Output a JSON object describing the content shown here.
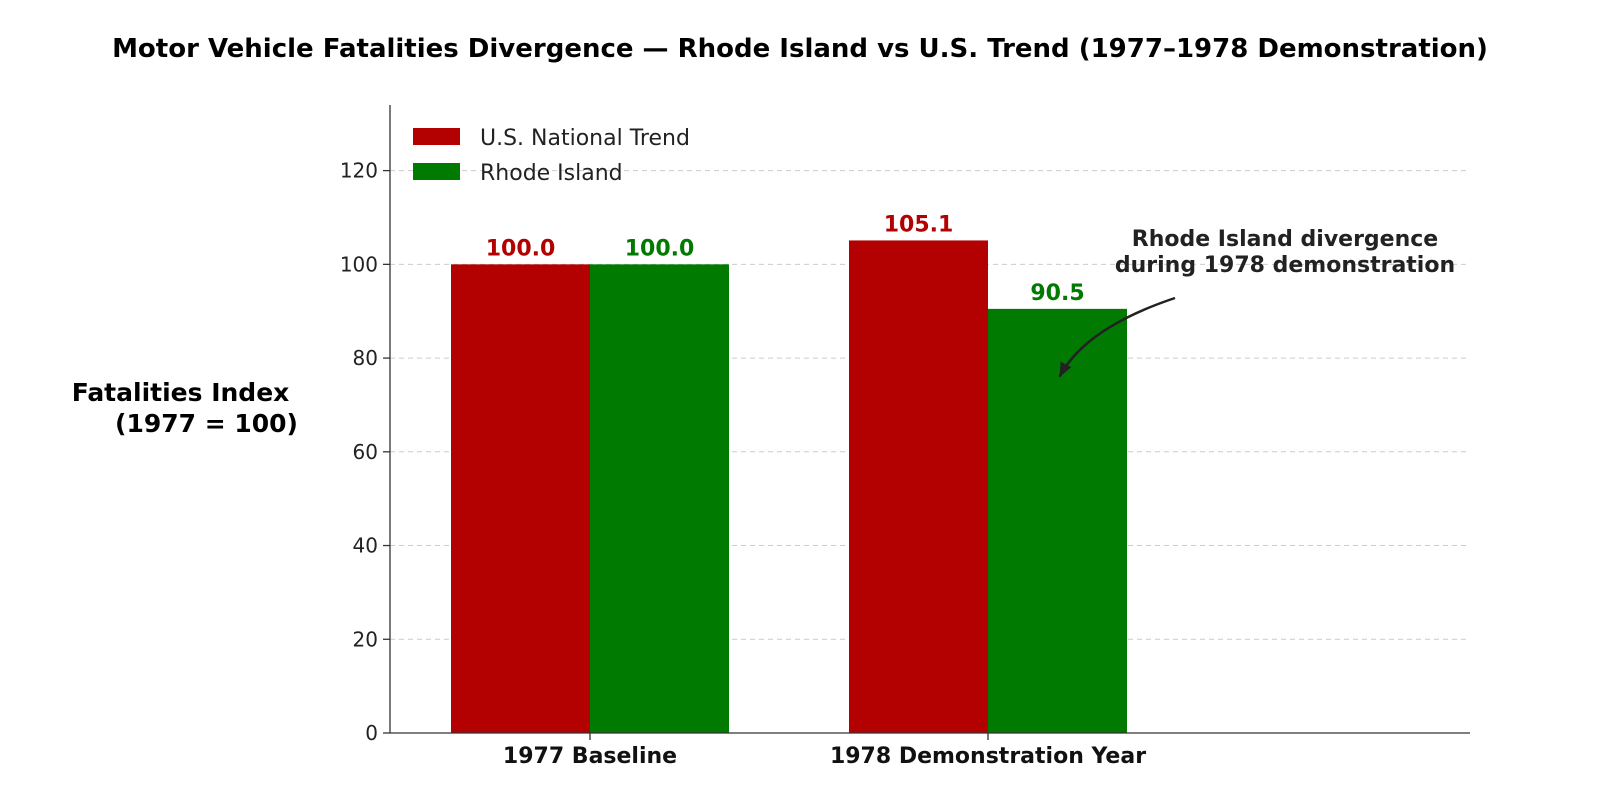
{
  "chart_data": {
    "type": "bar",
    "title": "Motor Vehicle Fatalities Divergence — Rhode Island vs U.S. Trend (1977–1978 Demonstration)",
    "ylabel_lines": [
      "Fatalities Index",
      "(1977 = 100)"
    ],
    "xlabel": "",
    "categories": [
      "1977 Baseline",
      "1978 Demonstration Year"
    ],
    "series": [
      {
        "name": "U.S. National Trend",
        "color": "#b30000",
        "values": [
          100.0,
          105.1
        ],
        "labels": [
          "100.0",
          "105.1"
        ]
      },
      {
        "name": "Rhode Island",
        "color": "#007a00",
        "values": [
          100.0,
          90.5
        ],
        "labels": [
          "100.0",
          "90.5"
        ]
      }
    ],
    "ylim": [
      0,
      134
    ],
    "yticks": [
      0,
      20,
      40,
      60,
      80,
      100,
      120
    ],
    "grid": true,
    "legend_position": "top-left",
    "annotation": {
      "lines": [
        "Rhode Island divergence",
        "during 1978 demonstration"
      ],
      "target_category": "1978 Demonstration Year",
      "target_series": "Rhode Island",
      "target_y": 76
    }
  }
}
